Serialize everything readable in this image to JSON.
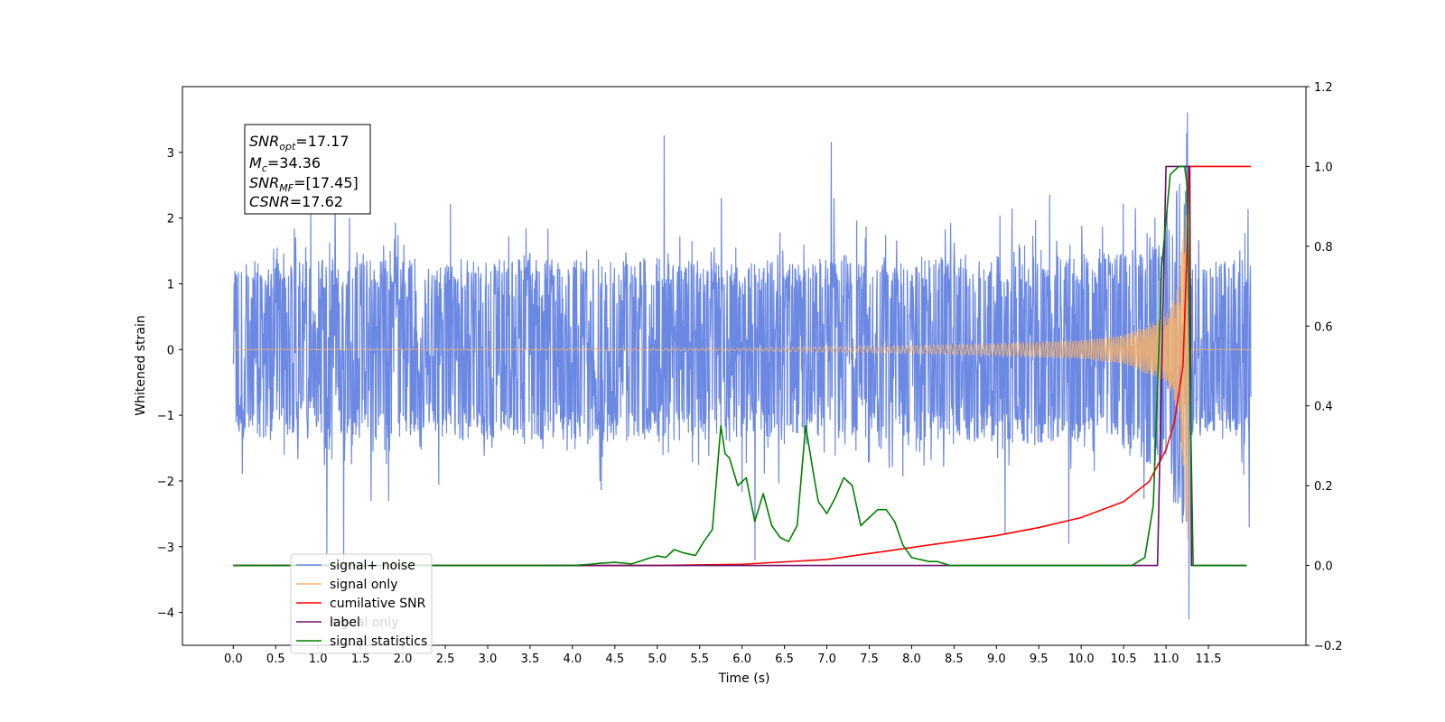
{
  "chart_data": {
    "type": "line",
    "xlabel": "Time (s)",
    "ylabel": "Whitened strain",
    "xlim": [
      -0.6,
      12.65
    ],
    "ylim": [
      -4.5,
      4.0
    ],
    "y2lim": [
      -0.2,
      1.2
    ],
    "x_ticks": [
      0.0,
      0.5,
      1.0,
      1.5,
      2.0,
      2.5,
      3.0,
      3.5,
      4.0,
      4.5,
      5.0,
      5.5,
      6.0,
      6.5,
      7.0,
      7.5,
      8.0,
      8.5,
      9.0,
      9.5,
      10.0,
      10.5,
      11.0,
      11.5
    ],
    "x_tick_labels": [
      "0.0",
      "0.5",
      "1.0",
      "1.5",
      "2.0",
      "2.5",
      "3.0",
      "3.5",
      "4.0",
      "4.5",
      "5.0",
      "5.5",
      "6.0",
      "6.5",
      "7.0",
      "7.5",
      "8.0",
      "8.5",
      "9.0",
      "9.5",
      "10.0",
      "10.5",
      "11.0",
      "11.5"
    ],
    "y_ticks": [
      -4,
      -3,
      -2,
      -1,
      0,
      1,
      2,
      3
    ],
    "y_tick_labels": [
      "−4",
      "−3",
      "−2",
      "−1",
      "0",
      "1",
      "2",
      "3"
    ],
    "y2_ticks": [
      -0.2,
      0.0,
      0.2,
      0.4,
      0.6,
      0.8,
      1.0,
      1.2
    ],
    "y2_tick_labels": [
      "−0.2",
      "0.0",
      "0.2",
      "0.4",
      "0.6",
      "0.8",
      "1.0",
      "1.2"
    ],
    "legend_position": "lower-left",
    "info_box": {
      "lines": [
        {
          "main": "SNR",
          "sub": "opt",
          "value": "=17.17"
        },
        {
          "main": "M",
          "sub": "c",
          "value": "=34.36"
        },
        {
          "main": "SNR",
          "sub": "MF",
          "value": "=[17.45]"
        },
        {
          "main": "CSNR",
          "sub": "",
          "value": "=17.62"
        }
      ]
    },
    "series": [
      {
        "name": "signal+ noise",
        "color": "#6b88e3",
        "axis": "left",
        "envelope": {
          "t": [
            0.0,
            1.0,
            2.0,
            3.0,
            4.0,
            5.0,
            6.0,
            7.0,
            8.0,
            9.0,
            10.0,
            10.5,
            11.0,
            11.2,
            11.25,
            11.3,
            12.0
          ],
          "amp": [
            1.25,
            1.25,
            1.25,
            1.25,
            1.25,
            1.25,
            1.25,
            1.25,
            1.25,
            1.3,
            1.3,
            1.4,
            1.7,
            2.6,
            3.1,
            1.2,
            1.25
          ]
        },
        "peaks": [
          [
            1.1,
            -3.1
          ],
          [
            1.3,
            -3.2
          ],
          [
            5.08,
            3.25
          ],
          [
            6.15,
            -3.2
          ],
          [
            7.05,
            3.15
          ],
          [
            9.1,
            -2.8
          ],
          [
            9.85,
            -2.95
          ],
          [
            11.25,
            3.6
          ],
          [
            11.27,
            -4.1
          ],
          [
            11.98,
            -2.7
          ]
        ]
      },
      {
        "name": "signal only",
        "color": "#f5b26b",
        "axis": "left",
        "envelope": {
          "t": [
            0.0,
            6.0,
            7.0,
            8.0,
            9.0,
            10.0,
            10.5,
            11.0,
            11.15,
            11.22,
            11.26,
            11.3,
            12.0
          ],
          "amp": [
            0.0,
            0.02,
            0.04,
            0.06,
            0.09,
            0.14,
            0.22,
            0.5,
            1.0,
            2.0,
            3.5,
            0.0,
            0.0
          ]
        }
      },
      {
        "name": "cumilative SNR",
        "color": "#ff0000",
        "axis": "right",
        "x": [
          0.0,
          5.0,
          6.0,
          7.0,
          7.5,
          8.0,
          8.5,
          9.0,
          9.5,
          10.0,
          10.5,
          10.8,
          11.0,
          11.1,
          11.2,
          11.25,
          11.27,
          12.0
        ],
        "y": [
          0.0,
          0.0,
          0.003,
          0.015,
          0.03,
          0.045,
          0.06,
          0.075,
          0.095,
          0.12,
          0.16,
          0.21,
          0.29,
          0.36,
          0.5,
          0.8,
          1.0,
          1.0
        ]
      },
      {
        "name": "label",
        "color": "#6a0f6a",
        "axis": "right",
        "x": [
          0.0,
          10.9,
          11.0,
          11.28,
          11.3,
          11.95
        ],
        "y": [
          0.0,
          0.0,
          1.0,
          1.0,
          0.0,
          0.0
        ]
      },
      {
        "name": "signal statistics",
        "color": "#008000",
        "axis": "right",
        "x": [
          0.0,
          4.0,
          4.2,
          4.3,
          4.5,
          4.7,
          4.9,
          5.0,
          5.1,
          5.2,
          5.3,
          5.45,
          5.55,
          5.65,
          5.75,
          5.8,
          5.85,
          5.95,
          6.05,
          6.15,
          6.25,
          6.35,
          6.45,
          6.55,
          6.65,
          6.75,
          6.85,
          6.9,
          7.0,
          7.1,
          7.2,
          7.3,
          7.4,
          7.5,
          7.6,
          7.7,
          7.8,
          7.9,
          8.0,
          8.1,
          8.2,
          8.3,
          8.45,
          8.7,
          9.0,
          10.0,
          10.6,
          10.75,
          10.85,
          10.95,
          11.05,
          11.15,
          11.22,
          11.25,
          11.28,
          11.32,
          11.4,
          11.95
        ],
        "y": [
          0.0,
          0.0,
          0.003,
          0.005,
          0.008,
          0.004,
          0.018,
          0.024,
          0.02,
          0.04,
          0.032,
          0.025,
          0.06,
          0.09,
          0.35,
          0.28,
          0.27,
          0.2,
          0.22,
          0.11,
          0.18,
          0.1,
          0.07,
          0.06,
          0.1,
          0.35,
          0.22,
          0.16,
          0.13,
          0.17,
          0.22,
          0.2,
          0.1,
          0.12,
          0.14,
          0.14,
          0.11,
          0.05,
          0.02,
          0.015,
          0.01,
          0.01,
          0.0,
          0.0,
          0.0,
          0.0,
          0.0,
          0.02,
          0.15,
          0.75,
          0.98,
          1.0,
          1.0,
          0.95,
          0.5,
          0.0,
          0.0,
          0.0
        ]
      }
    ],
    "legend_obscured_label": "signal only"
  }
}
